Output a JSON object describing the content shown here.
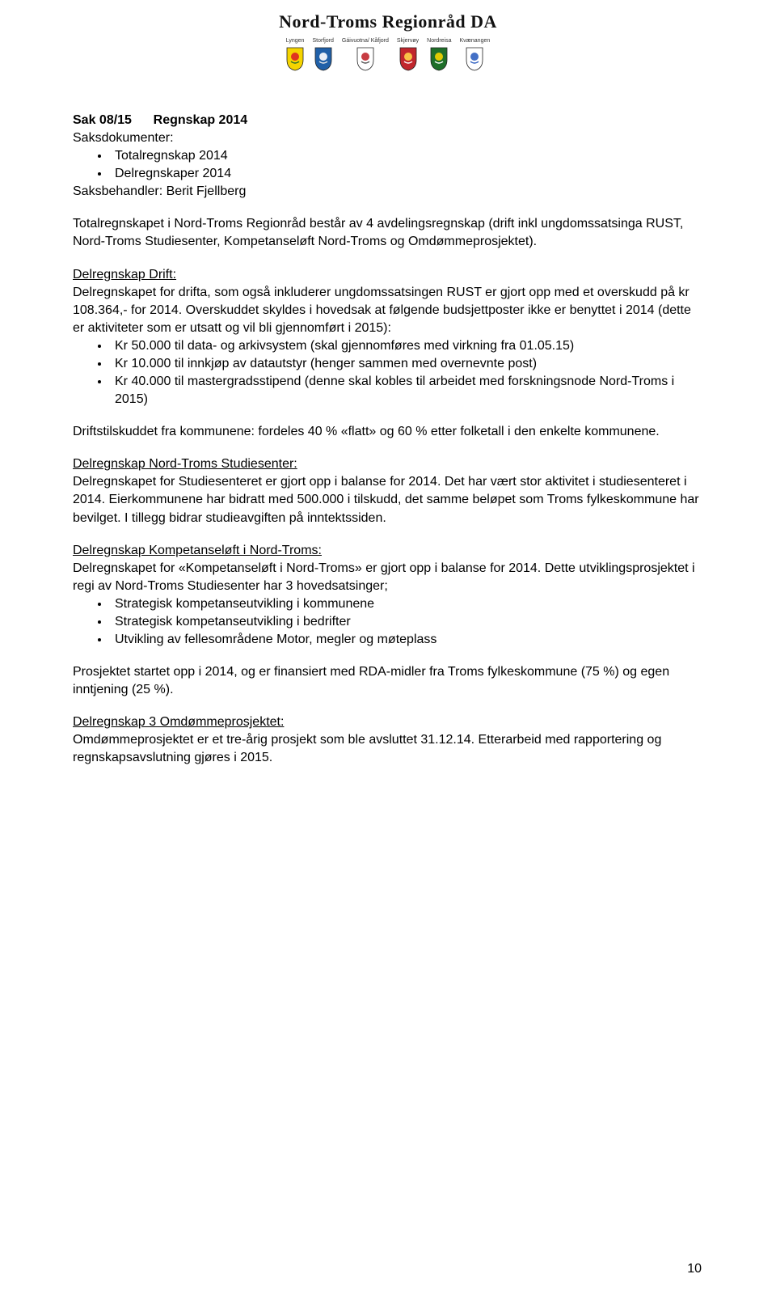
{
  "header": {
    "orgName": "Nord-Troms Regionråd DA",
    "crest_labels": [
      "Lyngen",
      "Storfjord",
      "Gáivuotna/ Kåfjord",
      "Skjervøy",
      "Nordreisa",
      "Kvænangen"
    ],
    "crest_colors": [
      {
        "fill": "#f5d400",
        "accent": "#d22",
        "accent2": "#2a6f2a"
      },
      {
        "fill": "#2060a8",
        "accent": "#ffffff",
        "accent2": "#e8e8e8"
      },
      {
        "fill": "#ffffff",
        "accent": "#c1272d",
        "accent2": "#555"
      },
      {
        "fill": "#c1272d",
        "accent": "#ffd54a",
        "accent2": "#ffffff"
      },
      {
        "fill": "#1f6f2a",
        "accent": "#f5d400",
        "accent2": "#ffffff"
      },
      {
        "fill": "#ffffff",
        "accent": "#3060c0",
        "accent2": "#3060c0"
      }
    ]
  },
  "title": {
    "line1_a": "Sak 08/15",
    "line1_b": "Regnskap 2014",
    "line2": "Saksdokumenter:",
    "bullets": [
      "Totalregnskap 2014",
      "Delregnskaper 2014"
    ],
    "handler": "Saksbehandler: Berit Fjellberg"
  },
  "p1": "Totalregnskapet i Nord-Troms Regionråd består av 4 avdelingsregnskap (drift inkl ungdomssatsinga RUST, Nord-Troms Studiesenter, Kompetanseløft Nord-Troms og Omdømmeprosjektet).",
  "drift": {
    "heading": "Delregnskap Drift:",
    "p": "Delregnskapet for drifta, som også inkluderer ungdomssatsingen RUST er gjort opp med et overskudd på kr 108.364,- for 2014. Overskuddet skyldes i hovedsak at følgende budsjettposter ikke er benyttet i 2014 (dette er aktiviteter som er utsatt og vil bli gjennomført i 2015):",
    "bullets": [
      "Kr 50.000 til data- og arkivsystem (skal gjennomføres med virkning fra 01.05.15)",
      "Kr 10.000 til innkjøp av datautstyr (henger sammen med overnevnte post)",
      "Kr 40.000 til mastergradsstipend (denne skal kobles til arbeidet med forskningsnode Nord-Troms i 2015)"
    ],
    "p2": "Driftstilskuddet fra kommunene: fordeles 40 % «flatt» og 60 % etter folketall i den enkelte kommunene."
  },
  "studie": {
    "heading": "Delregnskap Nord-Troms Studiesenter:",
    "p": "Delregnskapet for Studiesenteret er gjort opp i balanse for 2014. Det har vært stor aktivitet i studiesenteret i 2014. Eierkommunene har bidratt med 500.000 i tilskudd, det samme beløpet som Troms fylkeskommune har bevilget. I tillegg bidrar studieavgiften på inntektssiden."
  },
  "komp": {
    "heading": "Delregnskap Kompetanseløft i Nord-Troms:",
    "p": "Delregnskapet for «Kompetanseløft i Nord-Troms» er gjort opp i balanse for 2014. Dette utviklingsprosjektet i regi av Nord-Troms Studiesenter har 3 hovedsatsinger;",
    "bullets": [
      "Strategisk kompetanseutvikling i kommunene",
      "Strategisk kompetanseutvikling i bedrifter",
      "Utvikling av fellesområdene Motor, megler og møteplass"
    ],
    "p2": "Prosjektet startet opp i 2014, og er finansiert med RDA-midler fra Troms fylkeskommune (75 %) og egen inntjening (25 %)."
  },
  "omd": {
    "heading": "Delregnskap 3 Omdømmeprosjektet:",
    "p": "Omdømmeprosjektet er et tre-årig prosjekt som ble avsluttet 31.12.14. Etterarbeid med rapportering og regnskapsavslutning gjøres i 2015."
  },
  "pageNumber": "10"
}
